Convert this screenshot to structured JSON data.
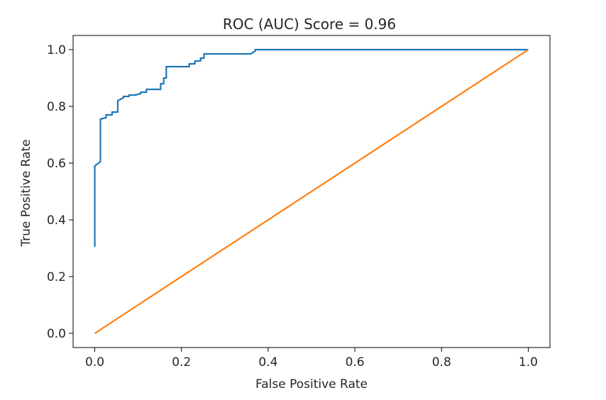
{
  "chart_data": {
    "type": "line",
    "title": "ROC (AUC) Score = 0.96",
    "xlabel": "False Positive Rate",
    "ylabel": "True Positive Rate",
    "xlim": [
      -0.05,
      1.05
    ],
    "ylim": [
      -0.05,
      1.05
    ],
    "xticks": [
      0.0,
      0.2,
      0.4,
      0.6,
      0.8,
      1.0
    ],
    "xtick_labels": [
      "0.0",
      "0.2",
      "0.4",
      "0.6",
      "0.8",
      "1.0"
    ],
    "yticks": [
      0.0,
      0.2,
      0.4,
      0.6,
      0.8,
      1.0
    ],
    "ytick_labels": [
      "0.0",
      "0.2",
      "0.4",
      "0.6",
      "0.8",
      "1.0"
    ],
    "grid": false,
    "legend": "none",
    "series": [
      {
        "color": "#1f77b4",
        "x": [
          0.0,
          0.0,
          0.0,
          0.0,
          0.013,
          0.013,
          0.013,
          0.026,
          0.026,
          0.04,
          0.04,
          0.053,
          0.053,
          0.066,
          0.066,
          0.079,
          0.079,
          0.093,
          0.106,
          0.106,
          0.119,
          0.119,
          0.132,
          0.152,
          0.152,
          0.159,
          0.159,
          0.165,
          0.165,
          0.185,
          0.204,
          0.218,
          0.218,
          0.231,
          0.231,
          0.244,
          0.244,
          0.252,
          0.252,
          0.36,
          0.37,
          0.37,
          1.0
        ],
        "y": [
          0.305,
          0.57,
          0.585,
          0.59,
          0.605,
          0.755,
          0.755,
          0.76,
          0.77,
          0.77,
          0.78,
          0.78,
          0.82,
          0.83,
          0.835,
          0.835,
          0.84,
          0.84,
          0.845,
          0.85,
          0.85,
          0.86,
          0.86,
          0.86,
          0.88,
          0.88,
          0.9,
          0.9,
          0.94,
          0.94,
          0.94,
          0.94,
          0.95,
          0.95,
          0.96,
          0.96,
          0.97,
          0.97,
          0.985,
          0.985,
          0.995,
          1.0,
          1.0
        ]
      },
      {
        "color": "#ff7f0e",
        "x": [
          0.0,
          1.0
        ],
        "y": [
          0.0,
          1.0
        ]
      }
    ]
  }
}
